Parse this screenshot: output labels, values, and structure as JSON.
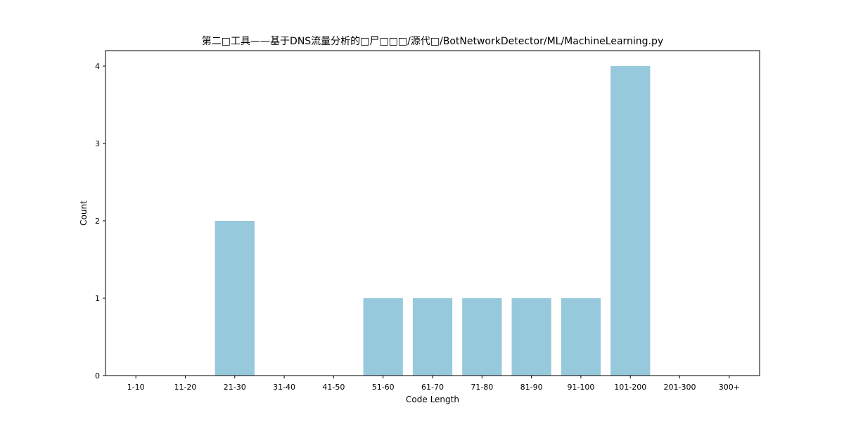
{
  "chart_data": {
    "type": "bar",
    "title": "第二□工具——基于DNS流量分析的□尸□□□/源代□/BotNetworkDetector/ML/MachineLearning.py",
    "xlabel": "Code Length",
    "ylabel": "Count",
    "categories": [
      "1-10",
      "11-20",
      "21-30",
      "31-40",
      "41-50",
      "51-60",
      "61-70",
      "71-80",
      "81-90",
      "91-100",
      "101-200",
      "201-300",
      "300+"
    ],
    "values": [
      0,
      0,
      2,
      0,
      0,
      1,
      1,
      1,
      1,
      1,
      4,
      0,
      0
    ],
    "ylim": [
      0,
      4.2
    ],
    "yticks": [
      0,
      1,
      2,
      3,
      4
    ],
    "grid": false,
    "bar_color": "#96c9dc"
  }
}
